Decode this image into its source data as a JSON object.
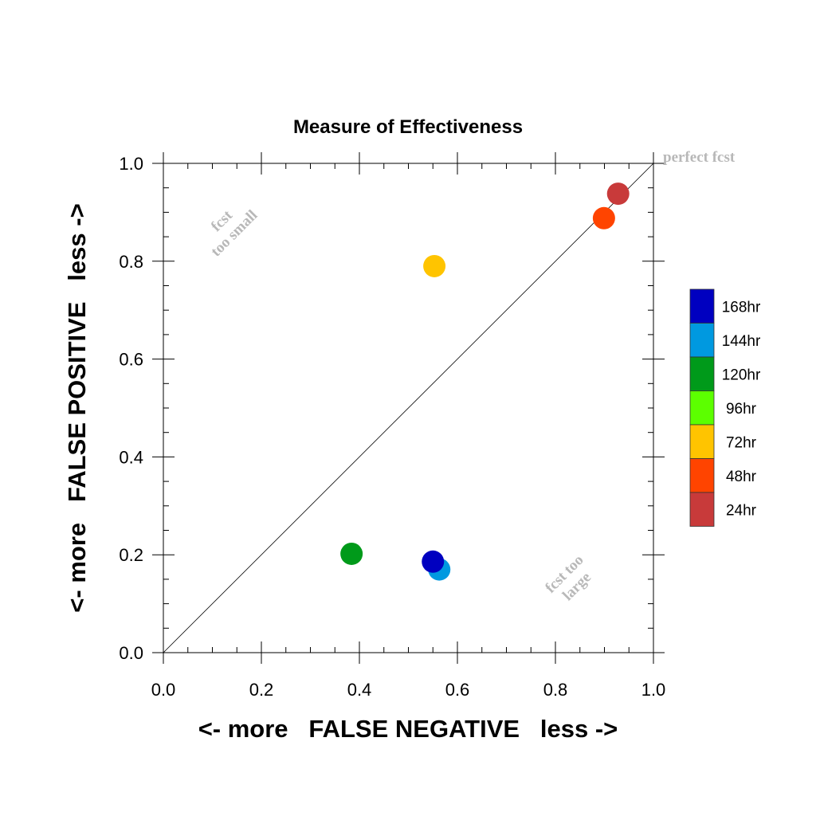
{
  "chart_data": {
    "type": "scatter",
    "title": "Measure of Effectiveness",
    "xlabel": "<- more   FALSE NEGATIVE   less ->",
    "ylabel": "<- more   FALSE POSITIVE   less ->",
    "xlim": [
      0.0,
      1.0
    ],
    "ylim": [
      0.0,
      1.0
    ],
    "x_ticks": [
      "0.0",
      "0.2",
      "0.4",
      "0.6",
      "0.8",
      "1.0"
    ],
    "y_ticks": [
      "0.0",
      "0.2",
      "0.4",
      "0.6",
      "0.8",
      "1.0"
    ],
    "grid": false,
    "diagonal_line": true,
    "annotations": {
      "top_right": "perfect fcst",
      "upper_left": [
        "fcst",
        "too small"
      ],
      "lower_right": [
        "fcst too",
        "large"
      ]
    },
    "legend_position": "right",
    "series": [
      {
        "name": "168hr",
        "color": "#0000c0",
        "x": 0.55,
        "y": 0.186
      },
      {
        "name": "144hr",
        "color": "#0099e0",
        "x": 0.563,
        "y": 0.17
      },
      {
        "name": "120hr",
        "color": "#009a1a",
        "x": 0.384,
        "y": 0.202
      },
      {
        "name": "96hr",
        "color": "#5cff00",
        "x": null,
        "y": null
      },
      {
        "name": "72hr",
        "color": "#ffc400",
        "x": 0.553,
        "y": 0.79
      },
      {
        "name": "48hr",
        "color": "#ff4400",
        "x": 0.899,
        "y": 0.888
      },
      {
        "name": "24hr",
        "color": "#c83a3a",
        "x": 0.928,
        "y": 0.938
      }
    ]
  }
}
